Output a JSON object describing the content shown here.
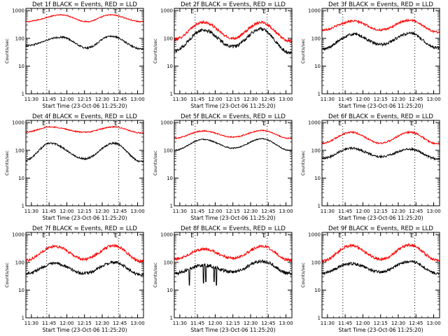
{
  "chart_data": [
    {
      "type": "line",
      "title": "Det 1f BLACK = Events, RED = LLD",
      "xlabel": "Start Time (23-Oct-06 11:25:20)",
      "ylabel": "Counts/sec",
      "x_ticks": [
        "11:30",
        "11:45",
        "12:00",
        "12:15",
        "12:30",
        "12:45",
        "13:00"
      ],
      "y_ticks": [
        "1",
        "10",
        "100",
        "1000"
      ],
      "x_range": [
        "11:25:20",
        "13:05:00"
      ],
      "y_scale": "log",
      "ylim": [
        1,
        1200
      ],
      "event_markers": [
        {
          "time": "11:43",
          "label": "E"
        },
        {
          "time": "12:44",
          "label": "E"
        }
      ],
      "series": [
        {
          "name": "LLD",
          "color": "#ff0000",
          "peaks": [
            {
              "time": "11:56",
              "value": 700
            },
            {
              "time": "12:37",
              "value": 700
            }
          ],
          "troughs": [
            {
              "time": "11:25",
              "value": 400
            },
            {
              "time": "12:17",
              "value": 400
            },
            {
              "time": "13:03",
              "value": 400
            }
          ],
          "noise": 0.02
        },
        {
          "name": "Events",
          "color": "#000000",
          "peaks": [
            {
              "time": "11:56",
              "value": 110
            },
            {
              "time": "12:37",
              "value": 120
            }
          ],
          "troughs": [
            {
              "time": "11:25",
              "value": 55
            },
            {
              "time": "12:17",
              "value": 45
            },
            {
              "time": "13:03",
              "value": 42
            }
          ],
          "noise": 0.03
        }
      ]
    },
    {
      "type": "line",
      "title": "Det 2f BLACK = Events, RED = LLD",
      "xlabel": "Start Time (23-Oct-06 11:25:20)",
      "ylabel": "Counts/sec",
      "x_ticks": [
        "11:30",
        "11:45",
        "12:00",
        "12:15",
        "12:30",
        "12:45",
        "13:00"
      ],
      "y_ticks": [
        "1",
        "10",
        "100",
        "1000"
      ],
      "x_range": [
        "11:25:20",
        "13:05:00"
      ],
      "y_scale": "log",
      "ylim": [
        1,
        1200
      ],
      "event_markers": [
        {
          "time": "11:43",
          "label": "E"
        },
        {
          "time": "12:44",
          "label": "E"
        }
      ],
      "series": [
        {
          "name": "LLD",
          "color": "#ff0000",
          "peaks": [
            {
              "time": "11:50",
              "value": 380
            },
            {
              "time": "12:39",
              "value": 380
            }
          ],
          "troughs": [
            {
              "time": "11:25",
              "value": 90
            },
            {
              "time": "12:15",
              "value": 100
            },
            {
              "time": "13:03",
              "value": 80
            }
          ],
          "noise": 0.05
        },
        {
          "name": "Events",
          "color": "#000000",
          "peaks": [
            {
              "time": "11:50",
              "value": 200
            },
            {
              "time": "12:39",
              "value": 220
            }
          ],
          "troughs": [
            {
              "time": "11:25",
              "value": 35
            },
            {
              "time": "12:15",
              "value": 50
            },
            {
              "time": "13:03",
              "value": 30
            }
          ],
          "noise": 0.06
        }
      ]
    },
    {
      "type": "line",
      "title": "Det 3f BLACK = Events, RED = LLD",
      "xlabel": "Start Time (23-Oct-06 11:25:20)",
      "ylabel": "Counts/sec",
      "x_ticks": [
        "11:30",
        "11:45",
        "12:00",
        "12:15",
        "12:30",
        "12:45",
        "13:00"
      ],
      "y_ticks": [
        "1",
        "10",
        "100",
        "1000"
      ],
      "x_range": [
        "11:25:20",
        "13:05:00"
      ],
      "y_scale": "log",
      "ylim": [
        1,
        1200
      ],
      "event_markers": [
        {
          "time": "11:43",
          "label": "E"
        },
        {
          "time": "12:44",
          "label": "E"
        }
      ],
      "series": [
        {
          "name": "LLD",
          "color": "#ff0000",
          "peaks": [
            {
              "time": "11:52",
              "value": 420
            },
            {
              "time": "12:40",
              "value": 450
            }
          ],
          "troughs": [
            {
              "time": "11:25",
              "value": 200
            },
            {
              "time": "12:15",
              "value": 200
            },
            {
              "time": "13:03",
              "value": 170
            }
          ],
          "noise": 0.04
        },
        {
          "name": "Events",
          "color": "#000000",
          "peaks": [
            {
              "time": "11:52",
              "value": 140
            },
            {
              "time": "12:40",
              "value": 150
            }
          ],
          "troughs": [
            {
              "time": "11:25",
              "value": 40
            },
            {
              "time": "12:15",
              "value": 60
            },
            {
              "time": "13:03",
              "value": 45
            }
          ],
          "noise": 0.05
        }
      ]
    },
    {
      "type": "line",
      "title": "Det 4f BLACK = Events, RED = LLD",
      "xlabel": "Start Time (23-Oct-06 11:25:20)",
      "ylabel": "Counts/sec",
      "x_ticks": [
        "11:30",
        "11:45",
        "12:00",
        "12:15",
        "12:30",
        "12:45",
        "13:00"
      ],
      "y_ticks": [
        "1",
        "10",
        "100",
        "1000"
      ],
      "x_range": [
        "11:25:20",
        "13:05:00"
      ],
      "y_scale": "log",
      "ylim": [
        1,
        1200
      ],
      "event_markers": [
        {
          "time": "11:43",
          "label": "E"
        },
        {
          "time": "12:44",
          "label": "E"
        }
      ],
      "series": [
        {
          "name": "LLD",
          "color": "#ff0000",
          "peaks": [
            {
              "time": "11:46",
              "value": 700
            },
            {
              "time": "12:40",
              "value": 700
            }
          ],
          "troughs": [
            {
              "time": "11:25",
              "value": 450
            },
            {
              "time": "12:15",
              "value": 450
            },
            {
              "time": "13:03",
              "value": 420
            }
          ],
          "noise": 0.02
        },
        {
          "name": "Events",
          "color": "#000000",
          "peaks": [
            {
              "time": "11:46",
              "value": 180
            },
            {
              "time": "12:40",
              "value": 180
            }
          ],
          "troughs": [
            {
              "time": "11:25",
              "value": 45
            },
            {
              "time": "12:15",
              "value": 50
            },
            {
              "time": "13:03",
              "value": 40
            }
          ],
          "noise": 0.03
        }
      ]
    },
    {
      "type": "line",
      "title": "Det 5f BLACK = Events, RED = LLD",
      "xlabel": "Start Time (23-Oct-06 11:25:20)",
      "ylabel": "Counts/sec",
      "x_ticks": [
        "11:30",
        "11:45",
        "12:00",
        "12:15",
        "12:30",
        "12:45",
        "13:00"
      ],
      "y_ticks": [
        "1",
        "10",
        "100",
        "1000"
      ],
      "x_range": [
        "11:25:20",
        "13:05:00"
      ],
      "y_scale": "log",
      "ylim": [
        1,
        1200
      ],
      "event_markers": [
        {
          "time": "11:43",
          "label": "E"
        },
        {
          "time": "12:44",
          "label": "E"
        }
      ],
      "series": [
        {
          "name": "LLD",
          "color": "#ff0000",
          "peaks": [
            {
              "time": "11:50",
              "value": 500
            },
            {
              "time": "12:40",
              "value": 520
            }
          ],
          "troughs": [
            {
              "time": "11:25",
              "value": 270
            },
            {
              "time": "12:15",
              "value": 300
            },
            {
              "time": "13:03",
              "value": 270
            }
          ],
          "noise": 0.02
        },
        {
          "name": "Events",
          "color": "#000000",
          "peaks": [
            {
              "time": "11:50",
              "value": 250
            },
            {
              "time": "12:40",
              "value": 260
            }
          ],
          "troughs": [
            {
              "time": "11:25",
              "value": 100
            },
            {
              "time": "12:15",
              "value": 120
            },
            {
              "time": "13:03",
              "value": 100
            }
          ],
          "noise": 0.02
        }
      ]
    },
    {
      "type": "line",
      "title": "Det 6f BLACK = Events, RED = LLD",
      "xlabel": "Start Time (23-Oct-06 11:25:20)",
      "ylabel": "Counts/sec",
      "x_ticks": [
        "11:30",
        "11:45",
        "12:00",
        "12:15",
        "12:30",
        "12:45",
        "13:00"
      ],
      "y_ticks": [
        "1",
        "10",
        "100",
        "1000"
      ],
      "x_range": [
        "11:25:20",
        "13:05:00"
      ],
      "y_scale": "log",
      "ylim": [
        1,
        1200
      ],
      "event_markers": [
        {
          "time": "11:43",
          "label": "E"
        },
        {
          "time": "12:44",
          "label": "E"
        }
      ],
      "series": [
        {
          "name": "LLD",
          "color": "#ff0000",
          "peaks": [
            {
              "time": "11:50",
              "value": 450
            },
            {
              "time": "12:40",
              "value": 450
            }
          ],
          "troughs": [
            {
              "time": "11:25",
              "value": 180
            },
            {
              "time": "12:15",
              "value": 180
            },
            {
              "time": "13:03",
              "value": 170
            }
          ],
          "noise": 0.03
        },
        {
          "name": "Events",
          "color": "#000000",
          "peaks": [
            {
              "time": "11:50",
              "value": 120
            },
            {
              "time": "12:40",
              "value": 110
            }
          ],
          "troughs": [
            {
              "time": "11:25",
              "value": 50
            },
            {
              "time": "12:15",
              "value": 60
            },
            {
              "time": "13:03",
              "value": 50
            }
          ],
          "noise": 0.04
        }
      ]
    },
    {
      "type": "line",
      "title": "Det 7f BLACK = Events, RED = LLD",
      "xlabel": "Start Time (23-Oct-06 11:25:20)",
      "ylabel": "Counts/sec",
      "x_ticks": [
        "11:30",
        "11:45",
        "12:00",
        "12:15",
        "12:30",
        "12:45",
        "13:00"
      ],
      "y_ticks": [
        "1",
        "10",
        "100",
        "1000"
      ],
      "x_range": [
        "11:25:20",
        "13:05:00"
      ],
      "y_scale": "log",
      "ylim": [
        1,
        1200
      ],
      "event_markers": [
        {
          "time": "11:43",
          "label": "E"
        },
        {
          "time": "12:44",
          "label": "E"
        }
      ],
      "series": [
        {
          "name": "LLD",
          "color": "#ff0000",
          "peaks": [
            {
              "time": "11:50",
              "value": 380
            },
            {
              "time": "12:40",
              "value": 400
            }
          ],
          "troughs": [
            {
              "time": "11:25",
              "value": 120
            },
            {
              "time": "12:15",
              "value": 130
            },
            {
              "time": "13:03",
              "value": 110
            }
          ],
          "noise": 0.05
        },
        {
          "name": "Events",
          "color": "#000000",
          "peaks": [
            {
              "time": "11:50",
              "value": 90
            },
            {
              "time": "12:40",
              "value": 100
            }
          ],
          "troughs": [
            {
              "time": "11:25",
              "value": 40
            },
            {
              "time": "12:15",
              "value": 40
            },
            {
              "time": "13:03",
              "value": 35
            }
          ],
          "noise": 0.05
        }
      ]
    },
    {
      "type": "line",
      "title": "Det 8f BLACK = Events, RED = LLD",
      "xlabel": "Start Time (23-Oct-06 11:25:20)",
      "ylabel": "Counts/sec",
      "x_ticks": [
        "11:30",
        "11:45",
        "12:00",
        "12:15",
        "12:30",
        "12:45",
        "13:00"
      ],
      "y_ticks": [
        "1",
        "10",
        "100",
        "1000"
      ],
      "x_range": [
        "11:25:20",
        "13:05:00"
      ],
      "y_scale": "log",
      "ylim": [
        1,
        1200
      ],
      "event_markers": [
        {
          "time": "11:43",
          "label": "E"
        },
        {
          "time": "12:44",
          "label": "E"
        }
      ],
      "series": [
        {
          "name": "LLD",
          "color": "#ff0000",
          "peaks": [
            {
              "time": "11:50",
              "value": 300
            },
            {
              "time": "12:40",
              "value": 380
            }
          ],
          "troughs": [
            {
              "time": "11:25",
              "value": 130
            },
            {
              "time": "12:15",
              "value": 140
            },
            {
              "time": "13:03",
              "value": 120
            }
          ],
          "noise": 0.05
        },
        {
          "name": "Events",
          "color": "#000000",
          "peaks": [
            {
              "time": "11:50",
              "value": 80
            },
            {
              "time": "12:40",
              "value": 110
            }
          ],
          "troughs": [
            {
              "time": "11:25",
              "value": 40
            },
            {
              "time": "12:15",
              "value": 45
            },
            {
              "time": "13:03",
              "value": 40
            }
          ],
          "noise": 0.06,
          "dips": [
            {
              "time": "11:38",
              "value": 15
            },
            {
              "time": "11:50",
              "value": 18
            },
            {
              "time": "11:52",
              "value": 20
            },
            {
              "time": "11:59",
              "value": 20
            },
            {
              "time": "12:01",
              "value": 15
            }
          ]
        }
      ]
    },
    {
      "type": "line",
      "title": "Det 9f BLACK = Events, RED = LLD",
      "xlabel": "Start Time (23-Oct-06 11:25:20)",
      "ylabel": "Counts/sec",
      "x_ticks": [
        "11:30",
        "11:45",
        "12:00",
        "12:15",
        "12:30",
        "12:45",
        "13:00"
      ],
      "y_ticks": [
        "1",
        "10",
        "100",
        "1000"
      ],
      "x_range": [
        "11:25:20",
        "13:05:00"
      ],
      "y_scale": "log",
      "ylim": [
        1,
        1200
      ],
      "event_markers": [
        {
          "time": "11:43",
          "label": "E"
        },
        {
          "time": "12:44",
          "label": "E"
        }
      ],
      "series": [
        {
          "name": "LLD",
          "color": "#ff0000",
          "peaks": [
            {
              "time": "11:50",
              "value": 400
            },
            {
              "time": "12:40",
              "value": 420
            }
          ],
          "troughs": [
            {
              "time": "11:25",
              "value": 110
            },
            {
              "time": "12:15",
              "value": 130
            },
            {
              "time": "13:03",
              "value": 120
            }
          ],
          "noise": 0.05
        },
        {
          "name": "Events",
          "color": "#000000",
          "peaks": [
            {
              "time": "11:50",
              "value": 90
            },
            {
              "time": "12:40",
              "value": 110
            }
          ],
          "troughs": [
            {
              "time": "11:25",
              "value": 40
            },
            {
              "time": "12:15",
              "value": 45
            },
            {
              "time": "13:03",
              "value": 40
            }
          ],
          "noise": 0.05
        }
      ]
    }
  ]
}
